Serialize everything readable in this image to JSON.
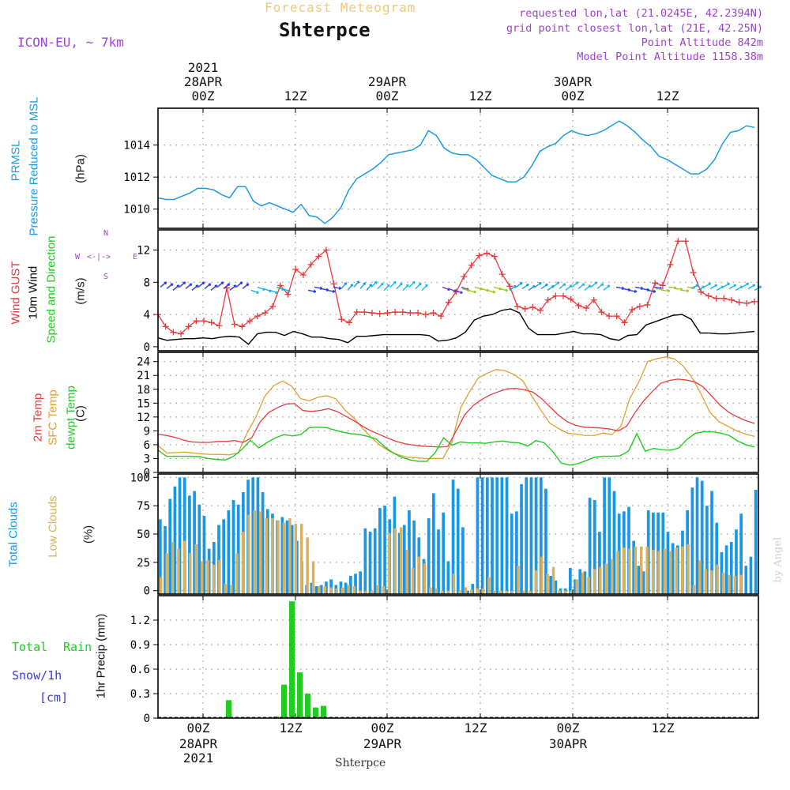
{
  "header": {
    "title_top": "Forecast Meteogram",
    "location": "Shterpce",
    "model": "ICON-EU, ~ 7km",
    "requested": "requested lon,lat (21.0245E, 42.2394N)",
    "gridpoint": "grid point closest lon,lat (21E, 42.25N)",
    "point_alt": "Point Altitude 842m",
    "model_alt": "Model Point Altitude 1158.38m",
    "footer_location": "Shterpce",
    "watermark": "by Angel"
  },
  "time_axis": {
    "top": [
      {
        "line1": "2021",
        "line2": "28APR",
        "line3": "00Z"
      },
      {
        "line1": "",
        "line2": "",
        "line3": "12Z"
      },
      {
        "line1": "",
        "line2": "29APR",
        "line3": "00Z"
      },
      {
        "line1": "",
        "line2": "",
        "line3": "12Z"
      },
      {
        "line1": "",
        "line2": "30APR",
        "line3": "00Z"
      },
      {
        "line1": "",
        "line2": "",
        "line3": "12Z"
      }
    ],
    "bottom": [
      {
        "line1": "00Z",
        "line2": "28APR",
        "line3": "2021"
      },
      {
        "line1": "12Z",
        "line2": "",
        "line3": ""
      },
      {
        "line1": "00Z",
        "line2": "29APR",
        "line3": ""
      },
      {
        "line1": "12Z",
        "line2": "",
        "line3": ""
      },
      {
        "line1": "00Z",
        "line2": "30APR",
        "line3": ""
      },
      {
        "line1": "12Z",
        "line2": "",
        "line3": ""
      }
    ]
  },
  "panels": {
    "pressure": {
      "label1": "PRMSL",
      "label2": "Pressure Reduced to MSL",
      "unit": "(hPa)"
    },
    "wind": {
      "label_gust": "Wind GUST",
      "label_wind": "10m Wind",
      "label_dir": "Speed and Direction",
      "unit": "(m/s)",
      "compass": {
        "n": "N",
        "s": "S",
        "w": "W",
        "e": "E",
        "glyph": "<-|->"
      }
    },
    "temp": {
      "label1": "2m Temp",
      "label2": "SFC Temp",
      "label3": "dewpt Temp",
      "unit": "(C)"
    },
    "clouds": {
      "label1": "Total Clouds",
      "label2": "Low Clouds",
      "unit": "(%)"
    },
    "precip": {
      "label_total": "Total",
      "label_rain": "Rain",
      "label_snow": "Snow/1h",
      "label_cm": "[cm]",
      "unit": "1hr Precip (mm)"
    }
  },
  "colors": {
    "pressure": "#1e9be0",
    "gust": "#e83a3a",
    "wind": "#000000",
    "t2m": "#e83a3a",
    "tsfc": "#e0a030",
    "dew": "#22cc22",
    "total_clouds": "#1896e8",
    "low_clouds": "#d8b060",
    "precip": "#22cc22",
    "grid": "#999999",
    "title": "#f0c878",
    "purple": "#a040d0",
    "snow": "#3a3ae0"
  },
  "chart_data": [
    {
      "type": "line",
      "id": "pressure",
      "title": "PRMSL Pressure Reduced to MSL",
      "ylabel": "(hPa)",
      "ylim": [
        1008.8,
        1016.3
      ],
      "yticks": [
        1010,
        1012,
        1014
      ],
      "series": [
        {
          "name": "PRMSL",
          "values": [
            1010.7,
            1010.6,
            1010.6,
            1010.8,
            1011.0,
            1011.3,
            1011.3,
            1011.2,
            1010.9,
            1010.7,
            1011.4,
            1011.4,
            1010.5,
            1010.2,
            1010.4,
            1010.2,
            1010.0,
            1009.8,
            1010.3,
            1009.6,
            1009.5,
            1009.1,
            1009.5,
            1010.1,
            1011.2,
            1011.9,
            1012.2,
            1012.5,
            1012.9,
            1013.4,
            1013.5,
            1013.6,
            1013.7,
            1014.0,
            1014.9,
            1014.6,
            1013.8,
            1013.5,
            1013.4,
            1013.4,
            1013.1,
            1012.6,
            1012.1,
            1011.9,
            1011.7,
            1011.7,
            1012.0,
            1012.7,
            1013.6,
            1013.9,
            1014.1,
            1014.6,
            1014.9,
            1014.7,
            1014.6,
            1014.7,
            1014.9,
            1015.2,
            1015.5,
            1015.2,
            1014.8,
            1014.3,
            1013.9,
            1013.3,
            1013.1,
            1012.8,
            1012.5,
            1012.2,
            1012.2,
            1012.5,
            1013.1,
            1014.1,
            1014.8,
            1014.9,
            1015.2,
            1015.1
          ]
        }
      ]
    },
    {
      "type": "line",
      "id": "wind",
      "title": "Wind GUST / 10m Wind Speed and Direction",
      "ylabel": "(m/s)",
      "ylim": [
        -0.5,
        14.5
      ],
      "yticks": [
        0,
        4,
        8,
        12
      ],
      "series": [
        {
          "name": "Wind GUST",
          "values": [
            4.0,
            2.5,
            1.8,
            1.6,
            2.5,
            3.2,
            3.2,
            3.0,
            2.6,
            7.3,
            2.8,
            2.5,
            3.2,
            3.8,
            4.2,
            5.0,
            7.6,
            6.5,
            9.6,
            8.9,
            10.2,
            11.2,
            12.0,
            7.8,
            3.4,
            3.0,
            4.3,
            4.3,
            4.2,
            4.1,
            4.2,
            4.3,
            4.3,
            4.2,
            4.2,
            4.0,
            4.2,
            3.8,
            5.5,
            6.8,
            8.7,
            10.1,
            11.3,
            11.6,
            11.2,
            9.0,
            7.5,
            5.0,
            4.7,
            4.9,
            4.5,
            5.8,
            6.3,
            6.3,
            5.9,
            5.1,
            4.8,
            5.8,
            4.3,
            3.8,
            3.8,
            3.0,
            4.6,
            5.0,
            5.2,
            7.9,
            7.6,
            10.2,
            13.1,
            13.1,
            9.2,
            6.8,
            6.3,
            6.0,
            6.0,
            5.8,
            5.5,
            5.4,
            5.6
          ]
        },
        {
          "name": "10m Wind",
          "values": [
            1.1,
            0.8,
            0.9,
            1.0,
            1.0,
            1.1,
            1.0,
            1.2,
            1.3,
            1.2,
            0.3,
            1.6,
            1.8,
            1.8,
            1.4,
            1.9,
            1.6,
            1.2,
            1.2,
            1.0,
            0.9,
            0.5,
            1.3,
            1.3,
            1.4,
            1.5,
            1.5,
            1.5,
            1.5,
            1.5,
            1.4,
            0.7,
            0.8,
            1.1,
            1.8,
            3.3,
            3.8,
            4.0,
            4.5,
            4.7,
            4.2,
            2.3,
            1.5,
            1.5,
            1.5,
            1.7,
            1.9,
            1.6,
            1.6,
            1.5,
            1.0,
            0.8,
            1.4,
            1.5,
            2.7,
            3.1,
            3.5,
            3.9,
            4.0,
            3.4,
            1.7,
            1.7,
            1.6,
            1.6,
            1.7,
            1.8,
            1.9
          ]
        }
      ]
    },
    {
      "type": "line",
      "id": "temp",
      "title": "2m Temp / SFC Temp / dewpt Temp",
      "ylabel": "(C)",
      "ylim": [
        0,
        26
      ],
      "yticks": [
        0,
        3,
        6,
        9,
        12,
        15,
        18,
        21,
        24
      ],
      "series": [
        {
          "name": "2m Temp",
          "values": [
            8.3,
            8.0,
            7.6,
            7.0,
            6.6,
            6.5,
            6.5,
            6.7,
            6.7,
            6.9,
            6.5,
            7.5,
            11.0,
            13.0,
            14.0,
            14.8,
            14.9,
            13.4,
            13.2,
            13.4,
            13.8,
            13.2,
            12.2,
            11.2,
            10.0,
            9.0,
            8.2,
            7.4,
            6.7,
            6.2,
            5.9,
            5.7,
            5.6,
            5.5,
            5.6,
            9.0,
            12.5,
            14.5,
            15.8,
            16.8,
            17.5,
            18.1,
            18.2,
            17.9,
            17.4,
            16.0,
            14.2,
            12.4,
            11.0,
            10.2,
            9.8,
            9.7,
            9.6,
            9.4,
            9.0,
            10.0,
            13.0,
            15.5,
            17.5,
            19.3,
            19.9,
            20.2,
            20.0,
            19.6,
            18.5,
            16.5,
            14.5,
            13.0,
            12.0,
            11.2,
            10.6
          ]
        },
        {
          "name": "SFC Temp",
          "values": [
            5.8,
            4.2,
            4.3,
            4.4,
            4.2,
            4.0,
            3.9,
            3.9,
            3.8,
            4.2,
            8.5,
            12.0,
            16.5,
            18.8,
            19.8,
            18.7,
            16.0,
            15.5,
            16.3,
            16.6,
            15.9,
            13.5,
            11.8,
            9.5,
            7.5,
            5.8,
            4.6,
            3.8,
            3.3,
            3.2,
            3.0,
            3.0,
            3.0,
            6.5,
            14.0,
            17.5,
            20.5,
            21.5,
            22.3,
            22.0,
            21.2,
            19.8,
            16.5,
            13.5,
            10.7,
            9.5,
            8.5,
            8.3,
            8.0,
            8.0,
            8.5,
            8.2,
            10.0,
            16.0,
            19.5,
            24.0,
            24.6,
            25.0,
            24.6,
            23.0,
            20.5,
            17.0,
            13.0,
            11.0,
            10.0,
            9.0,
            8.3,
            7.8
          ]
        },
        {
          "name": "dewpt Temp",
          "values": [
            4.8,
            3.5,
            3.5,
            3.5,
            3.5,
            3.4,
            3.0,
            2.8,
            2.7,
            3.5,
            5.0,
            7.0,
            5.3,
            6.5,
            7.5,
            8.2,
            7.9,
            8.2,
            9.7,
            9.8,
            9.7,
            9.2,
            8.7,
            8.4,
            8.2,
            7.8,
            7.2,
            5.5,
            4.2,
            3.3,
            2.7,
            2.4,
            2.4,
            4.3,
            7.5,
            5.9,
            6.6,
            6.4,
            6.4,
            6.3,
            6.6,
            6.8,
            6.5,
            6.4,
            5.7,
            6.9,
            6.4,
            4.5,
            2.0,
            1.6,
            1.9,
            2.6,
            3.3,
            3.5,
            3.5,
            3.6,
            4.6,
            8.4,
            4.6,
            5.2,
            4.9,
            4.8,
            5.3,
            7.2,
            8.5,
            8.8,
            8.8,
            8.5,
            8.0,
            6.8,
            6.0,
            5.5
          ]
        }
      ]
    },
    {
      "type": "bar",
      "id": "clouds",
      "title": "Total Clouds / Low Clouds",
      "ylabel": "(%)",
      "ylim": [
        -3,
        103
      ],
      "yticks": [
        0,
        25,
        50,
        75,
        100
      ],
      "series": [
        {
          "name": "Total Clouds",
          "values": [
            63,
            57,
            81,
            92,
            100,
            100,
            84,
            88,
            76,
            66,
            37,
            43,
            58,
            63,
            71,
            80,
            76,
            87,
            98,
            100,
            100,
            87,
            72,
            68,
            62,
            65,
            62,
            58,
            44,
            26,
            5,
            7,
            4,
            5,
            8,
            10,
            5,
            8,
            7,
            13,
            15,
            17,
            55,
            52,
            55,
            73,
            75,
            63,
            83,
            51,
            58,
            71,
            62,
            47,
            28,
            64,
            86,
            54,
            69,
            26,
            98,
            90,
            56,
            0,
            6,
            100,
            100,
            100,
            100,
            100,
            100,
            100,
            68,
            70,
            94,
            100,
            100,
            100,
            100,
            90,
            13,
            9,
            2,
            2,
            20,
            10,
            19,
            17,
            82,
            80,
            52,
            100,
            100,
            88,
            68,
            70,
            74,
            44,
            22,
            17,
            71,
            69,
            69,
            69,
            52,
            42,
            40,
            53,
            71,
            91,
            100,
            97,
            75,
            88,
            60,
            34,
            40,
            43,
            54,
            68,
            22,
            30,
            89
          ]
        },
        {
          "name": "Low Clouds",
          "values": [
            12,
            33,
            43,
            37,
            44,
            33,
            41,
            26,
            27,
            23,
            27,
            6,
            5,
            33,
            52,
            67,
            71,
            70,
            64,
            64,
            62,
            60,
            64,
            59,
            59,
            47,
            26,
            4,
            4,
            3,
            2,
            3,
            5,
            4,
            0,
            0,
            0,
            5,
            4,
            51,
            55,
            56,
            36,
            20,
            30,
            24,
            3,
            2,
            0,
            0,
            15,
            0,
            3,
            1,
            2,
            2,
            12,
            0,
            0,
            0,
            0,
            22,
            0,
            0,
            18,
            30,
            15,
            21,
            0,
            0,
            0,
            10,
            16,
            12,
            19,
            21,
            24,
            28,
            35,
            38,
            37,
            39,
            39,
            39,
            36,
            35,
            37,
            35,
            38,
            39,
            41,
            5,
            27,
            19,
            18,
            23,
            16,
            14,
            13,
            14
          ]
        }
      ]
    },
    {
      "type": "bar",
      "id": "precip",
      "title": "1hr Precip (mm)",
      "ylabel": "1hr Precip (mm)",
      "ylim": [
        0,
        1.5
      ],
      "yticks": [
        0,
        0.3,
        0.6,
        0.9,
        1.2
      ],
      "series": [
        {
          "name": "Total Rain",
          "values": [
            0.22,
            0.02,
            0.41,
            1.43,
            0.56,
            0.3,
            0.13,
            0.15,
            0.01,
            0.01
          ]
        }
      ]
    }
  ]
}
